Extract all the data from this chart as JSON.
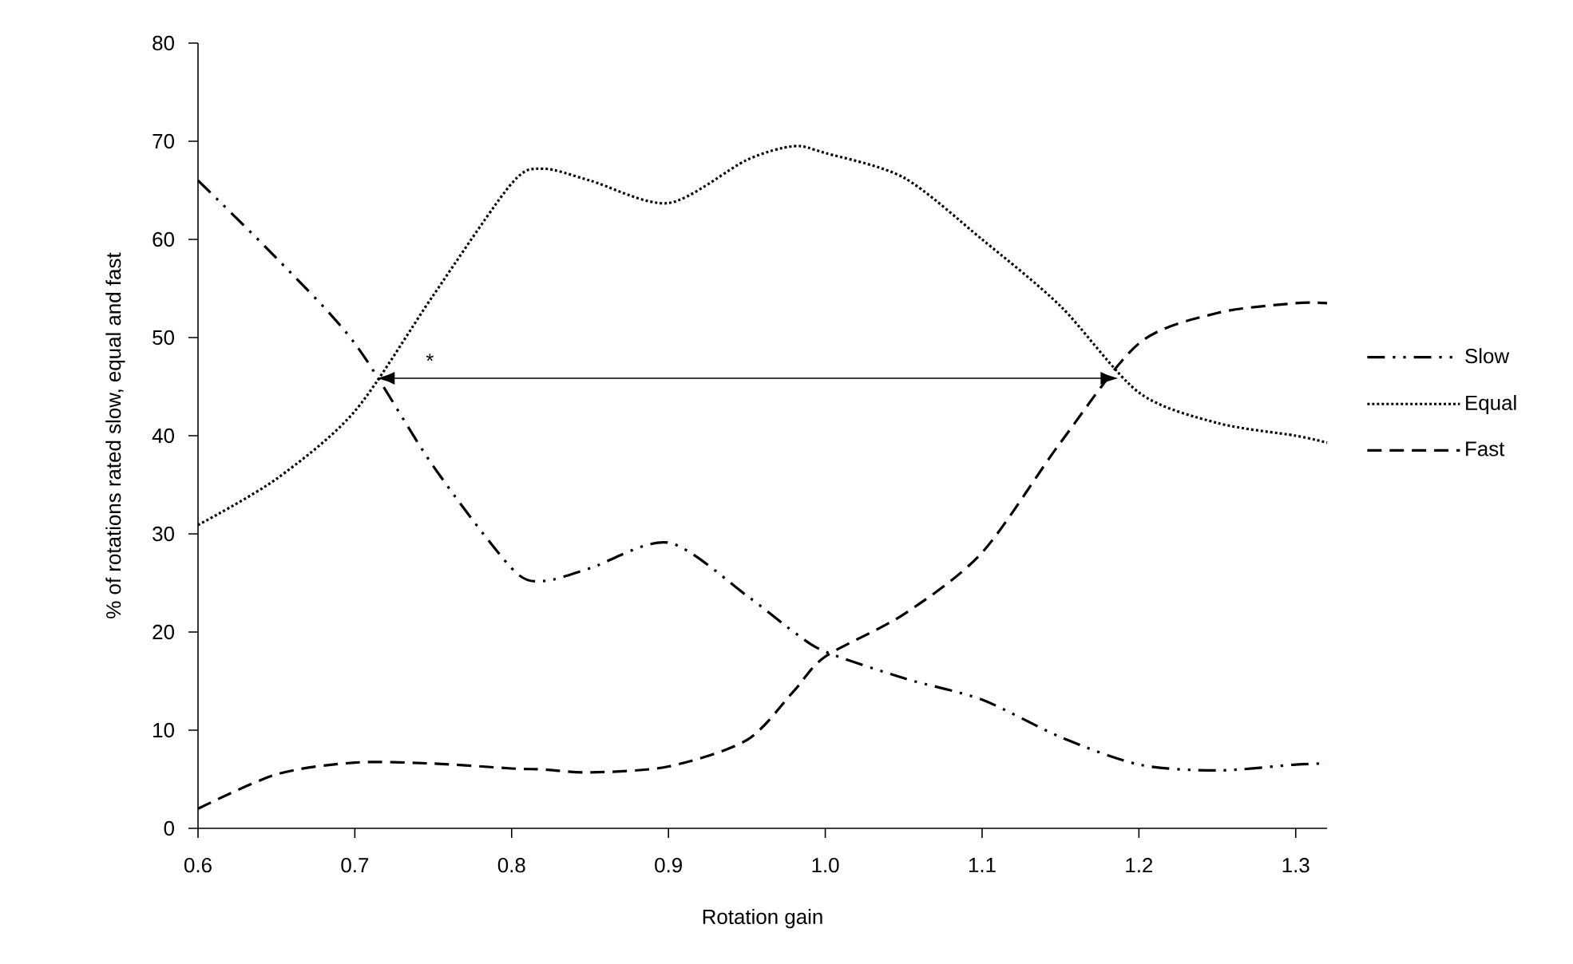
{
  "chart_data": {
    "type": "line",
    "xlabel": "Rotation gain",
    "ylabel": "% of rotations rated slow, equal and fast",
    "x": [
      0.6,
      0.65,
      0.7,
      0.75,
      0.8,
      0.82,
      0.85,
      0.9,
      0.95,
      0.98,
      1.0,
      1.05,
      1.1,
      1.15,
      1.2,
      1.25,
      1.3,
      1.32
    ],
    "series": [
      {
        "name": "Slow",
        "color": "#000000",
        "line_style": "dashdotdotted",
        "values": [
          66,
          58.1,
          49.4,
          36.9,
          26.5,
          25.2,
          26.5,
          29.1,
          23.7,
          20,
          18,
          15.3,
          13.1,
          9.3,
          6.5,
          5.9,
          6.5,
          6.6
        ]
      },
      {
        "name": "Equal",
        "color": "#000000",
        "line_style": "dotted",
        "values": [
          30.9,
          35.6,
          42.5,
          54.3,
          65.7,
          67.2,
          66,
          63.7,
          68.1,
          69.5,
          68.8,
          66.3,
          60,
          53.2,
          44.4,
          41.3,
          40,
          39.3
        ]
      },
      {
        "name": "Fast",
        "color": "#000000",
        "line_style": "dashed",
        "values": [
          2,
          5.5,
          6.7,
          6.6,
          6.1,
          6,
          5.7,
          6.3,
          9,
          14,
          17.5,
          21.8,
          28.1,
          39.3,
          49.4,
          52.5,
          53.5,
          53.5
        ]
      }
    ],
    "xlim": [
      0.6,
      1.32
    ],
    "ylim": [
      0,
      80
    ],
    "xticks": [
      0.6,
      0.7,
      0.8,
      0.9,
      {
        "value": 1.0,
        "label": "1.0"
      },
      1.1,
      1.2,
      1.3
    ],
    "yticks": [
      0,
      10,
      20,
      30,
      40,
      50,
      60,
      70,
      80
    ],
    "annotations": [
      "*"
    ],
    "grid": false,
    "legend": "right",
    "marker": "none"
  }
}
